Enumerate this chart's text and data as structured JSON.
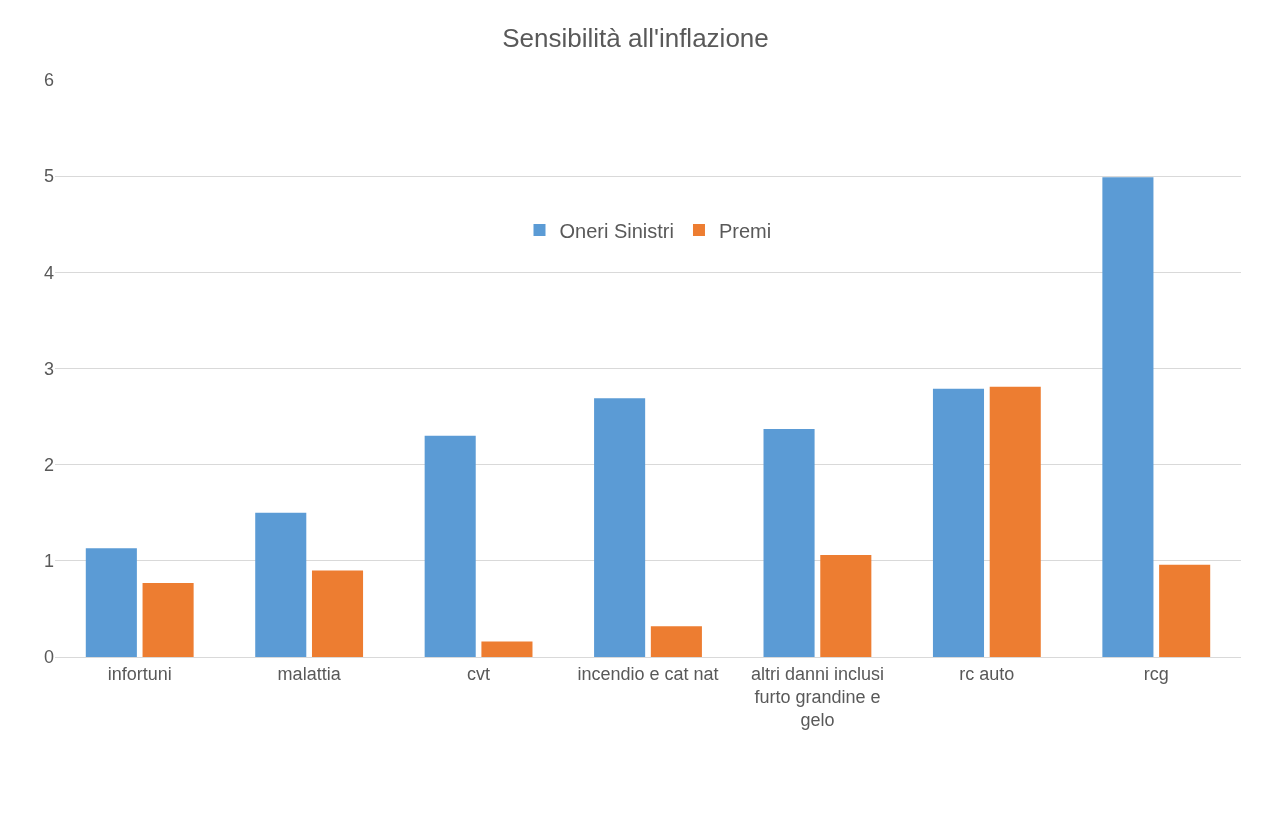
{
  "chart_data": {
    "type": "bar",
    "title": "Sensibilità all'inflazione",
    "categories": [
      "infortuni",
      "malattia",
      "cvt",
      "incendio e cat nat",
      "altri danni inclusi furto grandine e gelo",
      "rc auto",
      "rcg"
    ],
    "series": [
      {
        "name": "Oneri Sinistri",
        "color": "#5b9bd5",
        "values": [
          1.13,
          1.5,
          2.3,
          2.69,
          2.37,
          2.79,
          4.99
        ]
      },
      {
        "name": "Premi",
        "color": "#ed7d31",
        "values": [
          0.77,
          0.9,
          0.16,
          0.32,
          1.06,
          2.81,
          0.96
        ]
      }
    ],
    "ylim": [
      0,
      6
    ],
    "yticks": [
      0,
      1,
      2,
      3,
      4,
      5,
      6
    ],
    "grid": "y",
    "legend": "top"
  }
}
